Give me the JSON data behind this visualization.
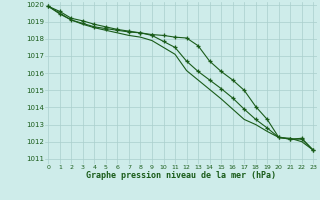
{
  "x": [
    0,
    1,
    2,
    3,
    4,
    5,
    6,
    7,
    8,
    9,
    10,
    11,
    12,
    13,
    14,
    15,
    16,
    17,
    18,
    19,
    20,
    21,
    22,
    23
  ],
  "line_steep": [
    1019.9,
    1019.5,
    1019.1,
    1018.85,
    1018.65,
    1018.5,
    1018.35,
    1018.2,
    1018.1,
    1017.9,
    1017.5,
    1017.1,
    1016.15,
    1015.6,
    1015.05,
    1014.5,
    1013.9,
    1013.3,
    1013.0,
    1012.6,
    1012.25,
    1012.2,
    1012.0,
    1011.5
  ],
  "line_top": [
    1019.9,
    1019.6,
    1019.2,
    1019.05,
    1018.85,
    1018.7,
    1018.55,
    1018.45,
    1018.35,
    1018.25,
    1018.2,
    1018.1,
    1018.05,
    1017.6,
    1016.7,
    1016.1,
    1015.6,
    1015.0,
    1014.05,
    1013.3,
    1012.25,
    1012.15,
    1012.15,
    1011.5
  ],
  "line_mid": [
    1019.9,
    1019.45,
    1019.1,
    1018.9,
    1018.7,
    1018.6,
    1018.5,
    1018.4,
    1018.35,
    1018.2,
    1017.85,
    1017.5,
    1016.7,
    1016.1,
    1015.6,
    1015.1,
    1014.55,
    1013.9,
    1013.3,
    1012.8,
    1012.25,
    1012.15,
    1012.2,
    1011.5
  ],
  "ylim_min": 1011,
  "ylim_max": 1020,
  "yticks": [
    1011,
    1012,
    1013,
    1014,
    1015,
    1016,
    1017,
    1018,
    1019,
    1020
  ],
  "xticks": [
    0,
    1,
    2,
    3,
    4,
    5,
    6,
    7,
    8,
    9,
    10,
    11,
    12,
    13,
    14,
    15,
    16,
    17,
    18,
    19,
    20,
    21,
    22,
    23
  ],
  "xlabel": "Graphe pression niveau de la mer (hPa)",
  "line_color": "#1a5c1a",
  "bg_color": "#ceecea",
  "grid_color": "#aacfcc",
  "marker": "+",
  "marker_size": 3.5,
  "linewidth": 0.8
}
